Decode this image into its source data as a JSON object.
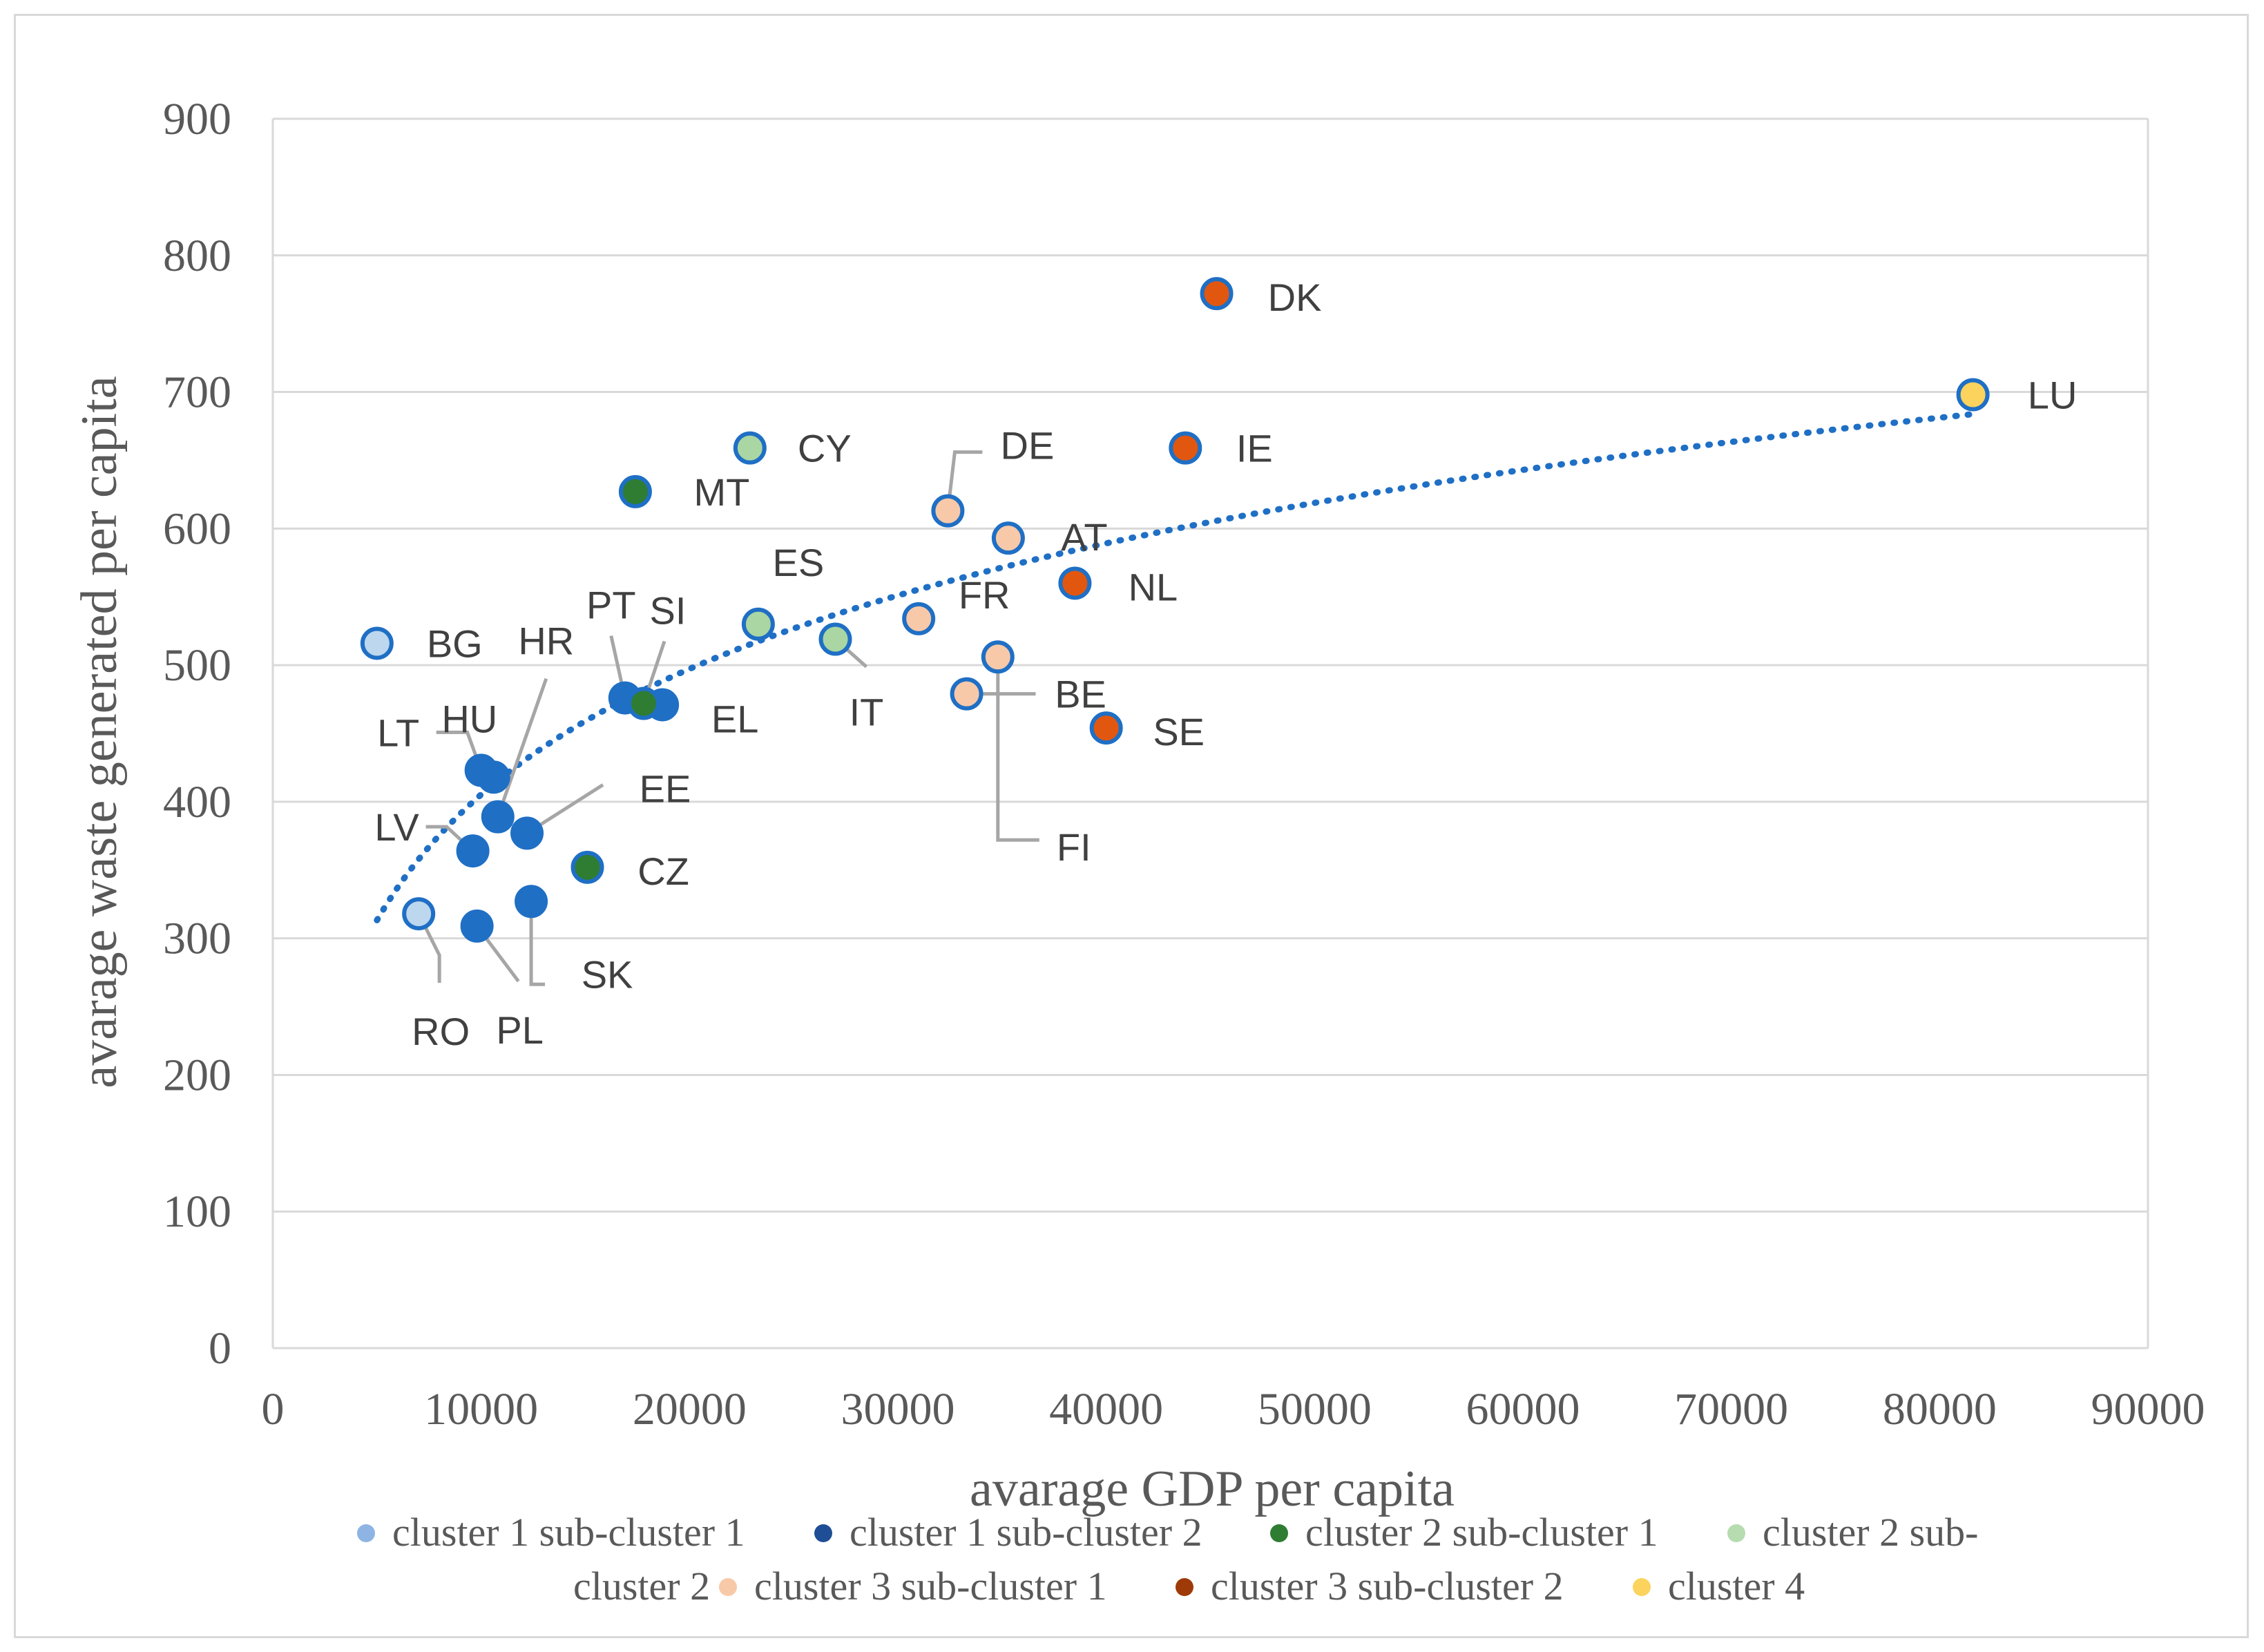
{
  "chart_data": {
    "type": "scatter",
    "title": "",
    "xlabel": "avarage GDP per capita",
    "ylabel": "avarage waste generated per capita",
    "xlim": [
      0,
      90000
    ],
    "ylim": [
      0,
      900
    ],
    "x_ticks": [
      0,
      10000,
      20000,
      30000,
      40000,
      50000,
      60000,
      70000,
      80000,
      90000
    ],
    "y_ticks": [
      0,
      100,
      200,
      300,
      400,
      500,
      600,
      700,
      800,
      900
    ],
    "x_tick_labels": [
      "0",
      "10000",
      "20000",
      "30000",
      "40000",
      "50000",
      "60000",
      "70000",
      "80000",
      "90000"
    ],
    "y_tick_labels": [
      "0",
      "100",
      "200",
      "300",
      "400",
      "500",
      "600",
      "700",
      "800",
      "900"
    ],
    "grid": "horizontal",
    "legend_position": "bottom",
    "series": [
      {
        "name": "cluster 1 sub-cluster 1",
        "color": "#bdd7ee",
        "legend_color": "#8eb4e3",
        "points": [
          {
            "label": "BG",
            "x": 5000,
            "y": 516
          },
          {
            "label": "RO",
            "x": 7000,
            "y": 318
          }
        ]
      },
      {
        "name": "cluster 1 sub-cluster 2",
        "color": "#1f6fc5",
        "legend_color": "#1f4e96",
        "points": [
          {
            "label": "LT",
            "x": 10000,
            "y": 423
          },
          {
            "label": "HU",
            "x": 10600,
            "y": 418
          },
          {
            "label": "HR",
            "x": 10800,
            "y": 389
          },
          {
            "label": "LV",
            "x": 9600,
            "y": 364
          },
          {
            "label": "EE",
            "x": 12200,
            "y": 377
          },
          {
            "label": "PL",
            "x": 9800,
            "y": 309
          },
          {
            "label": "SK",
            "x": 12400,
            "y": 327
          },
          {
            "label": "PT",
            "x": 16900,
            "y": 476
          },
          {
            "label": "EL",
            "x": 18700,
            "y": 471
          }
        ]
      },
      {
        "name": "cluster 2 sub-cluster 1",
        "color": "#2e7d32",
        "legend_color": "#2e7d32",
        "points": [
          {
            "label": "MT",
            "x": 17400,
            "y": 627
          },
          {
            "label": "SI",
            "x": 17800,
            "y": 472
          },
          {
            "label": "CZ",
            "x": 15100,
            "y": 352
          }
        ]
      },
      {
        "name": "cluster 2 sub-cluster 2",
        "color": "#a9d6a3",
        "legend_color": "#b6dcb0",
        "points": [
          {
            "label": "CY",
            "x": 22900,
            "y": 659
          },
          {
            "label": "ES",
            "x": 23300,
            "y": 530
          },
          {
            "label": "IT",
            "x": 27000,
            "y": 519
          }
        ]
      },
      {
        "name": "cluster 3 sub-cluster 1",
        "color": "#f8c9a8",
        "legend_color": "#f8c9a8",
        "points": [
          {
            "label": "DE",
            "x": 32400,
            "y": 613
          },
          {
            "label": "AT",
            "x": 35300,
            "y": 593
          },
          {
            "label": "FR",
            "x": 31000,
            "y": 534
          },
          {
            "label": "FI",
            "x": 34800,
            "y": 506
          },
          {
            "label": "BE",
            "x": 33300,
            "y": 479
          }
        ]
      },
      {
        "name": "cluster 3 sub-cluster 2",
        "color": "#e2570f",
        "legend_color": "#9e3a08",
        "points": [
          {
            "label": "DK",
            "x": 45300,
            "y": 772
          },
          {
            "label": "IE",
            "x": 43800,
            "y": 659
          },
          {
            "label": "NL",
            "x": 38500,
            "y": 560
          },
          {
            "label": "SE",
            "x": 40000,
            "y": 454
          }
        ]
      },
      {
        "name": "cluster 4",
        "color": "#fbd35d",
        "legend_color": "#fbd35d",
        "points": [
          {
            "label": "LU",
            "x": 81600,
            "y": 698
          }
        ]
      }
    ],
    "trendline": {
      "type": "logarithmic",
      "style": "dotted",
      "color": "#1f6fc5",
      "x_range": [
        5000,
        81600
      ]
    }
  }
}
